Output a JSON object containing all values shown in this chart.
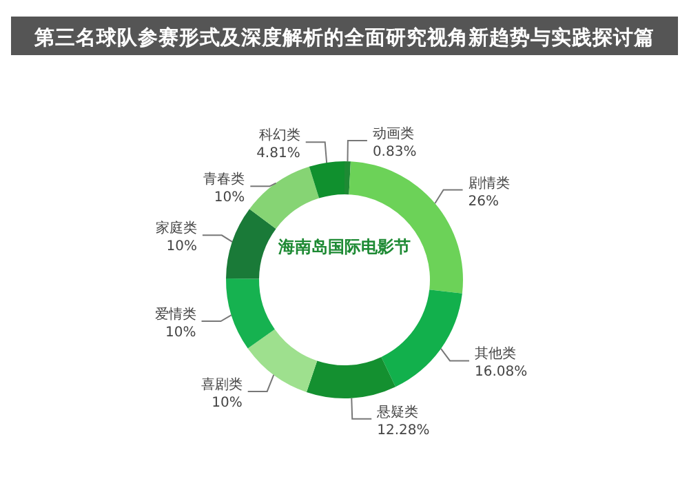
{
  "chart_data": {
    "type": "donut",
    "title": "第三名球队参赛形式及深度解析的全面研究视角新趋势与实践探讨篇",
    "subtitle": "海南岛国际电影节",
    "categories": [
      "动画类",
      "剧情类",
      "其他类",
      "悬疑类",
      "喜剧类",
      "爱情类",
      "家庭类",
      "青春类",
      "科幻类"
    ],
    "values": [
      0.83,
      26,
      16.08,
      12.28,
      10,
      10,
      10,
      10,
      4.81
    ],
    "value_labels": [
      "0.83%",
      "26%",
      "16.08%",
      "12.28%",
      "10%",
      "10%",
      "10%",
      "10%",
      "4.81%"
    ],
    "colors": [
      "#1e8a34",
      "#6cd258",
      "#12b04c",
      "#149030",
      "#9ee08e",
      "#16b250",
      "#1a7a38",
      "#86d474",
      "#10902e"
    ]
  }
}
